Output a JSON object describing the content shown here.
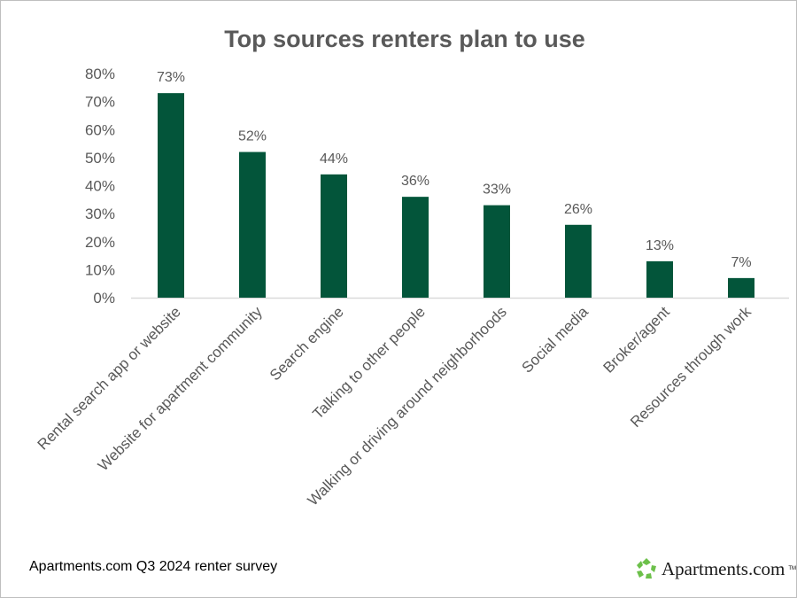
{
  "chart_data": {
    "type": "bar",
    "title": "Top sources renters plan to use",
    "categories": [
      "Rental search app or website",
      "Website for apartment community",
      "Search engine",
      "Talking to other people",
      "Walking or driving around neighborhoods",
      "Social media",
      "Broker/agent",
      "Resources through work"
    ],
    "values": [
      73,
      52,
      44,
      36,
      33,
      26,
      13,
      7
    ],
    "data_labels": [
      "73%",
      "52%",
      "44%",
      "36%",
      "33%",
      "26%",
      "13%",
      "7%"
    ],
    "ylim": [
      0,
      80
    ],
    "yticks": [
      "0%",
      "10%",
      "20%",
      "30%",
      "40%",
      "50%",
      "60%",
      "70%",
      "80%"
    ],
    "xlabel": "",
    "ylabel": "",
    "grid": false,
    "bar_color": "#03553A"
  },
  "footer": {
    "source": "Apartments.com Q3 2024 renter survey",
    "logo_text": "Apartments.com",
    "logo_tm": "TM"
  }
}
